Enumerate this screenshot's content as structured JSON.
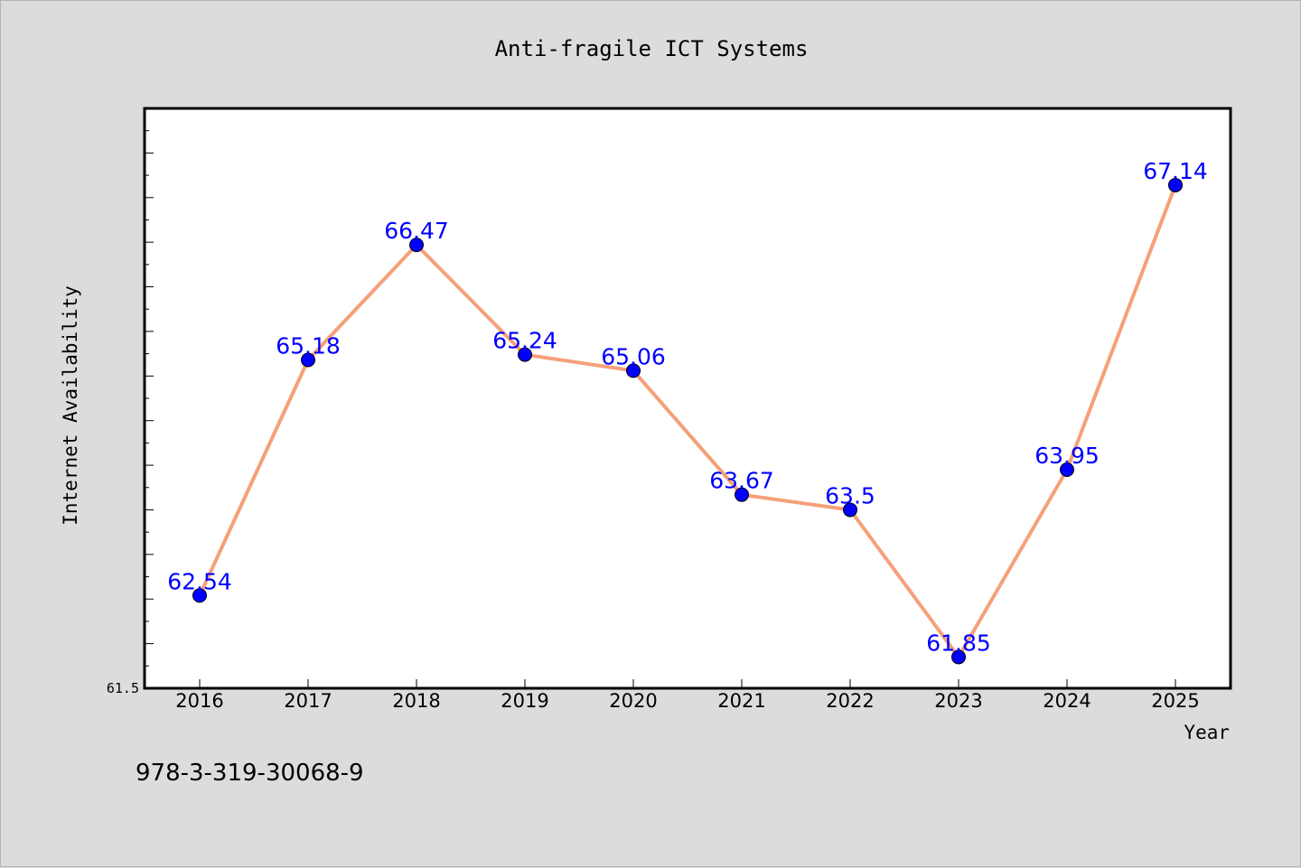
{
  "chart_data": {
    "type": "line",
    "title": "Anti-fragile ICT Systems",
    "xlabel": "Year",
    "ylabel": "Internet Availability",
    "x": [
      "2016",
      "2017",
      "2018",
      "2019",
      "2020",
      "2021",
      "2022",
      "2023",
      "2024",
      "2025"
    ],
    "series": [
      {
        "values": [
          62.54,
          65.18,
          66.47,
          65.24,
          65.06,
          63.67,
          63.5,
          61.85,
          63.95,
          67.14
        ],
        "data_labels": [
          "62.54",
          "65.18",
          "66.47",
          "65.24",
          "65.06",
          "63.67",
          "63.5",
          "61.85",
          "63.95",
          "67.14"
        ]
      }
    ],
    "ylim": [
      61.5,
      68.0
    ],
    "y_min_label": "61.5",
    "grid": false,
    "legend": "none",
    "line_color": "#f5a07a",
    "marker_color": "#0000ff",
    "label_color": "#0000ff"
  },
  "footnote": "978-3-319-30068-9"
}
